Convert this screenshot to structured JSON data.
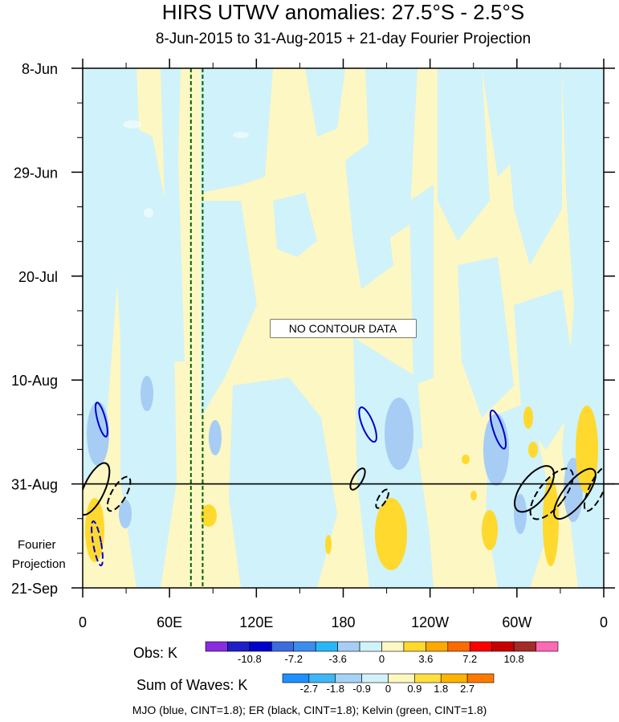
{
  "title": "HIRS UTWV anomalies: 27.5°S - 2.5°S",
  "subtitle": "8-Jun-2015 to 31-Aug-2015 + 21-day Fourier Projection",
  "no_data_label": "NO CONTOUR DATA",
  "projection_label": [
    "Fourier",
    "Projection"
  ],
  "footer_note": "MJO (blue, CINT=1.8); ER (black, CINT=1.8); Kelvin (green, CINT=1.8)",
  "colors": {
    "obs_levels": [
      "#8A2BE2",
      "#1E1EC8",
      "#0000CD",
      "#3D6CE0",
      "#3C8CF0",
      "#29B6F6",
      "#A7CDF5",
      "#D0F2FA",
      "#FDF7C3",
      "#FFD92E",
      "#FFA800",
      "#FF6A00",
      "#FF0000",
      "#C80000",
      "#A52A2A",
      "#FF69B4"
    ],
    "sum_levels": [
      "#1E90FF",
      "#3FB6F5",
      "#A5D3F7",
      "#D3F1FA",
      "#FDF8C0",
      "#FFDF40",
      "#FFB300",
      "#FF7A00"
    ],
    "mjo": "#0000CD",
    "er": "#000000",
    "kelvin": "#006400"
  },
  "chart_data": {
    "type": "heatmap",
    "title": "HIRS UTWV anomalies: 27.5°S - 2.5°S",
    "subtitle": "8-Jun-2015 to 31-Aug-2015 + 21-day Fourier Projection",
    "x_axis": {
      "range": [
        0,
        360
      ],
      "ticks": [
        "0",
        "60E",
        "120E",
        "180",
        "120W",
        "60W",
        "0"
      ],
      "tick_values": [
        0,
        60,
        120,
        180,
        240,
        300,
        360
      ]
    },
    "y_axis": {
      "range": [
        "8-Jun-2015",
        "21-Sep-2015"
      ],
      "reversed": true,
      "ticks": [
        "8-Jun",
        "29-Jun",
        "20-Jul",
        "10-Aug",
        "31-Aug",
        "21-Sep"
      ]
    },
    "observation_end": "31-Aug",
    "obs_colorbar": {
      "label": "Obs: K",
      "levels": [
        -12.6,
        -10.8,
        -9.0,
        -7.2,
        -5.4,
        -3.6,
        -1.8,
        0,
        1.8,
        3.6,
        5.4,
        7.2,
        9.0,
        10.8,
        12.6
      ],
      "labels": [
        "-10.8",
        "-7.2",
        "-3.6",
        "0",
        "3.6",
        "7.2",
        "10.8"
      ]
    },
    "sum_colorbar": {
      "label": "Sum of Waves: K",
      "levels": [
        -2.7,
        -1.8,
        -0.9,
        0,
        0.9,
        1.8,
        2.7
      ],
      "labels": [
        "-2.7",
        "-1.8",
        "-0.9",
        "0",
        "0.9",
        "1.8",
        "2.7"
      ]
    },
    "contours": [
      {
        "wave": "Kelvin",
        "color": "green",
        "style": "dashed",
        "x": 72
      },
      {
        "wave": "Kelvin",
        "color": "green",
        "style": "dashed",
        "x": 79
      },
      {
        "wave": "MJO",
        "color": "blue",
        "style": "solid",
        "center": [
          13,
          "18-Aug"
        ]
      },
      {
        "wave": "MJO",
        "color": "blue",
        "style": "dashed",
        "center": [
          10,
          "12-Sep"
        ]
      },
      {
        "wave": "MJO",
        "color": "blue",
        "style": "solid",
        "center": [
          197,
          "19-Aug"
        ]
      },
      {
        "wave": "MJO",
        "color": "blue",
        "style": "solid",
        "center": [
          287,
          "20-Aug"
        ]
      },
      {
        "wave": "ER",
        "color": "black",
        "style": "solid",
        "center": [
          8,
          "1-Sep"
        ]
      },
      {
        "wave": "ER",
        "color": "black",
        "style": "dashed",
        "center": [
          25,
          "2-Sep"
        ]
      },
      {
        "wave": "ER",
        "color": "black",
        "style": "solid",
        "center": [
          190,
          "30-Aug"
        ]
      },
      {
        "wave": "ER",
        "color": "black",
        "style": "dashed",
        "center": [
          207,
          "3-Sep"
        ]
      },
      {
        "wave": "ER",
        "color": "black",
        "style": "solid",
        "center": [
          312,
          "1-Sep"
        ]
      },
      {
        "wave": "ER",
        "color": "black",
        "style": "dashed",
        "center": [
          324,
          "2-Sep"
        ]
      },
      {
        "wave": "ER",
        "color": "black",
        "style": "solid",
        "center": [
          340,
          "2-Sep"
        ]
      },
      {
        "wave": "ER",
        "color": "black",
        "style": "dashed",
        "center": [
          355,
          "1-Sep"
        ]
      }
    ]
  }
}
